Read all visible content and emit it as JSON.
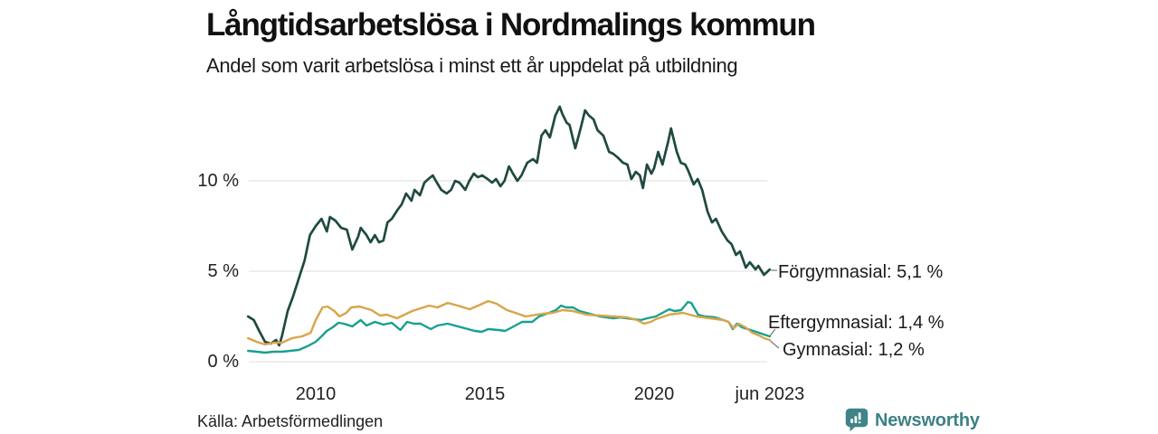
{
  "header": {
    "title": "Långtidsarbetslösa i Nordmalings kommun",
    "subtitle": "Andel som varit arbetslösa i minst ett år uppdelat på utbildning"
  },
  "footer": {
    "source": "Källa: Arbetsförmedlingen",
    "brand": "Newsworthy"
  },
  "colors": {
    "forgymnasial": "#1f4a41",
    "eftergymnasial": "#18a08e",
    "gymnasial": "#d8a549",
    "gridline": "#e4e4e4",
    "connector": "#777777",
    "brand_teal": "#3e8185",
    "text": "#1a1a1a"
  },
  "chart_data": {
    "type": "line",
    "title": "Långtidsarbetslösa i Nordmalings kommun",
    "subtitle": "Andel som varit arbetslösa i minst ett år uppdelat på utbildning",
    "xlabel": "",
    "ylabel": "",
    "xlim": [
      2008.0,
      2023.42
    ],
    "ylim": [
      0,
      14.5
    ],
    "grid": "horizontal",
    "legend_position": "end-of-line-labels",
    "yticks": [
      {
        "value": 0,
        "label": "0 %"
      },
      {
        "value": 5,
        "label": "5 %"
      },
      {
        "value": 10,
        "label": "10 %"
      }
    ],
    "xticks": [
      {
        "value": 2010,
        "label": "2010"
      },
      {
        "value": 2015,
        "label": "2015"
      },
      {
        "value": 2020,
        "label": "2020"
      },
      {
        "value": 2023.42,
        "label": "jun 2023"
      }
    ],
    "series": [
      {
        "name": "Förgymnasial",
        "end_label": "Förgymnasial: 5,1 %",
        "final_value": 5.1,
        "color": "#1f4a41",
        "width": 2.7,
        "points": [
          [
            2008.0,
            2.5
          ],
          [
            2008.17,
            2.3
          ],
          [
            2008.33,
            1.7
          ],
          [
            2008.5,
            1.1
          ],
          [
            2008.67,
            1.0
          ],
          [
            2008.83,
            1.2
          ],
          [
            2008.92,
            0.9
          ],
          [
            2009.0,
            1.4
          ],
          [
            2009.17,
            2.8
          ],
          [
            2009.33,
            3.6
          ],
          [
            2009.5,
            4.6
          ],
          [
            2009.67,
            5.6
          ],
          [
            2009.83,
            7.0
          ],
          [
            2010.0,
            7.5
          ],
          [
            2010.17,
            7.9
          ],
          [
            2010.33,
            7.2
          ],
          [
            2010.42,
            8.0
          ],
          [
            2010.58,
            7.8
          ],
          [
            2010.75,
            7.4
          ],
          [
            2010.92,
            7.3
          ],
          [
            2011.08,
            6.2
          ],
          [
            2011.25,
            6.9
          ],
          [
            2011.33,
            7.4
          ],
          [
            2011.5,
            7.0
          ],
          [
            2011.62,
            6.6
          ],
          [
            2011.75,
            7.0
          ],
          [
            2011.87,
            6.6
          ],
          [
            2012.0,
            6.7
          ],
          [
            2012.12,
            7.7
          ],
          [
            2012.25,
            7.9
          ],
          [
            2012.42,
            8.4
          ],
          [
            2012.54,
            8.7
          ],
          [
            2012.67,
            9.3
          ],
          [
            2012.83,
            8.9
          ],
          [
            2012.92,
            9.5
          ],
          [
            2013.08,
            9.2
          ],
          [
            2013.21,
            9.9
          ],
          [
            2013.33,
            10.1
          ],
          [
            2013.46,
            10.3
          ],
          [
            2013.58,
            9.9
          ],
          [
            2013.71,
            9.5
          ],
          [
            2013.87,
            9.3
          ],
          [
            2014.0,
            9.5
          ],
          [
            2014.12,
            10.0
          ],
          [
            2014.25,
            9.9
          ],
          [
            2014.42,
            9.5
          ],
          [
            2014.54,
            10.0
          ],
          [
            2014.67,
            10.4
          ],
          [
            2014.79,
            10.2
          ],
          [
            2014.92,
            10.3
          ],
          [
            2015.08,
            10.1
          ],
          [
            2015.21,
            9.9
          ],
          [
            2015.33,
            10.1
          ],
          [
            2015.46,
            9.7
          ],
          [
            2015.58,
            10.0
          ],
          [
            2015.71,
            10.8
          ],
          [
            2015.83,
            10.4
          ],
          [
            2015.96,
            10.0
          ],
          [
            2016.08,
            10.3
          ],
          [
            2016.25,
            11.0
          ],
          [
            2016.42,
            11.2
          ],
          [
            2016.54,
            11.0
          ],
          [
            2016.67,
            12.5
          ],
          [
            2016.79,
            12.8
          ],
          [
            2016.92,
            12.4
          ],
          [
            2017.08,
            13.6
          ],
          [
            2017.21,
            14.1
          ],
          [
            2017.29,
            13.7
          ],
          [
            2017.42,
            13.2
          ],
          [
            2017.5,
            13.1
          ],
          [
            2017.67,
            11.8
          ],
          [
            2017.83,
            12.9
          ],
          [
            2017.96,
            13.9
          ],
          [
            2018.08,
            13.6
          ],
          [
            2018.21,
            13.4
          ],
          [
            2018.33,
            12.8
          ],
          [
            2018.5,
            12.5
          ],
          [
            2018.67,
            11.6
          ],
          [
            2018.79,
            11.5
          ],
          [
            2018.92,
            11.3
          ],
          [
            2019.08,
            11.0
          ],
          [
            2019.21,
            10.9
          ],
          [
            2019.33,
            10.1
          ],
          [
            2019.46,
            10.5
          ],
          [
            2019.58,
            10.3
          ],
          [
            2019.67,
            9.6
          ],
          [
            2019.79,
            10.9
          ],
          [
            2019.92,
            10.4
          ],
          [
            2020.0,
            10.7
          ],
          [
            2020.12,
            11.6
          ],
          [
            2020.25,
            10.9
          ],
          [
            2020.42,
            12.2
          ],
          [
            2020.5,
            12.9
          ],
          [
            2020.67,
            11.6
          ],
          [
            2020.79,
            11.0
          ],
          [
            2020.92,
            10.9
          ],
          [
            2021.0,
            10.6
          ],
          [
            2021.17,
            9.8
          ],
          [
            2021.29,
            10.1
          ],
          [
            2021.42,
            9.5
          ],
          [
            2021.58,
            8.3
          ],
          [
            2021.71,
            7.7
          ],
          [
            2021.83,
            7.9
          ],
          [
            2022.0,
            7.2
          ],
          [
            2022.17,
            6.7
          ],
          [
            2022.29,
            6.5
          ],
          [
            2022.42,
            5.9
          ],
          [
            2022.54,
            6.1
          ],
          [
            2022.71,
            5.2
          ],
          [
            2022.83,
            5.5
          ],
          [
            2023.0,
            5.1
          ],
          [
            2023.08,
            5.3
          ],
          [
            2023.25,
            4.8
          ],
          [
            2023.42,
            5.1
          ]
        ]
      },
      {
        "name": "Eftergymnasial",
        "end_label": "Eftergymnasial: 1,4 %",
        "final_value": 1.4,
        "color": "#18a08e",
        "width": 2.4,
        "points": [
          [
            2008.0,
            0.6
          ],
          [
            2008.25,
            0.55
          ],
          [
            2008.5,
            0.5
          ],
          [
            2008.75,
            0.55
          ],
          [
            2009.0,
            0.55
          ],
          [
            2009.25,
            0.6
          ],
          [
            2009.5,
            0.65
          ],
          [
            2009.75,
            0.85
          ],
          [
            2010.0,
            1.1
          ],
          [
            2010.17,
            1.4
          ],
          [
            2010.33,
            1.7
          ],
          [
            2010.5,
            1.9
          ],
          [
            2010.67,
            2.15
          ],
          [
            2010.83,
            2.1
          ],
          [
            2011.08,
            1.95
          ],
          [
            2011.33,
            2.3
          ],
          [
            2011.5,
            2.0
          ],
          [
            2011.75,
            2.2
          ],
          [
            2012.0,
            2.05
          ],
          [
            2012.25,
            2.15
          ],
          [
            2012.5,
            1.75
          ],
          [
            2012.7,
            2.2
          ],
          [
            2012.9,
            2.1
          ],
          [
            2013.1,
            2.1
          ],
          [
            2013.4,
            1.8
          ],
          [
            2013.6,
            2.0
          ],
          [
            2013.9,
            2.1
          ],
          [
            2014.1,
            2.0
          ],
          [
            2014.4,
            1.85
          ],
          [
            2014.7,
            1.7
          ],
          [
            2014.9,
            1.65
          ],
          [
            2015.1,
            1.8
          ],
          [
            2015.4,
            1.75
          ],
          [
            2015.6,
            1.7
          ],
          [
            2015.9,
            2.0
          ],
          [
            2016.1,
            2.2
          ],
          [
            2016.4,
            2.2
          ],
          [
            2016.6,
            2.5
          ],
          [
            2016.9,
            2.7
          ],
          [
            2017.1,
            2.85
          ],
          [
            2017.25,
            3.1
          ],
          [
            2017.4,
            3.0
          ],
          [
            2017.6,
            3.0
          ],
          [
            2017.8,
            2.8
          ],
          [
            2018.0,
            2.7
          ],
          [
            2018.2,
            2.6
          ],
          [
            2018.4,
            2.5
          ],
          [
            2018.6,
            2.45
          ],
          [
            2018.8,
            2.4
          ],
          [
            2019.0,
            2.45
          ],
          [
            2019.2,
            2.4
          ],
          [
            2019.4,
            2.35
          ],
          [
            2019.6,
            2.3
          ],
          [
            2019.8,
            2.4
          ],
          [
            2020.05,
            2.5
          ],
          [
            2020.25,
            2.7
          ],
          [
            2020.45,
            2.9
          ],
          [
            2020.6,
            2.8
          ],
          [
            2020.8,
            2.85
          ],
          [
            2021.0,
            3.3
          ],
          [
            2021.1,
            3.25
          ],
          [
            2021.3,
            2.6
          ],
          [
            2021.5,
            2.5
          ],
          [
            2021.8,
            2.45
          ],
          [
            2022.05,
            2.3
          ],
          [
            2022.2,
            2.2
          ],
          [
            2022.33,
            1.8
          ],
          [
            2022.45,
            2.1
          ],
          [
            2022.6,
            1.9
          ],
          [
            2022.85,
            1.75
          ],
          [
            2023.1,
            1.6
          ],
          [
            2023.25,
            1.5
          ],
          [
            2023.42,
            1.4
          ]
        ]
      },
      {
        "name": "Gymnasial",
        "end_label": "Gymnasial: 1,2 %",
        "final_value": 1.2,
        "color": "#d8a549",
        "width": 2.4,
        "points": [
          [
            2008.0,
            1.3
          ],
          [
            2008.25,
            1.1
          ],
          [
            2008.5,
            0.95
          ],
          [
            2008.75,
            1.05
          ],
          [
            2009.0,
            1.05
          ],
          [
            2009.3,
            1.3
          ],
          [
            2009.6,
            1.4
          ],
          [
            2009.85,
            1.6
          ],
          [
            2010.0,
            2.3
          ],
          [
            2010.2,
            3.0
          ],
          [
            2010.35,
            3.05
          ],
          [
            2010.55,
            2.8
          ],
          [
            2010.7,
            2.5
          ],
          [
            2010.9,
            2.7
          ],
          [
            2011.05,
            3.0
          ],
          [
            2011.3,
            3.05
          ],
          [
            2011.65,
            2.85
          ],
          [
            2011.9,
            2.55
          ],
          [
            2012.1,
            2.6
          ],
          [
            2012.4,
            2.4
          ],
          [
            2012.85,
            2.8
          ],
          [
            2013.1,
            2.95
          ],
          [
            2013.35,
            3.1
          ],
          [
            2013.6,
            3.0
          ],
          [
            2013.9,
            3.25
          ],
          [
            2014.2,
            3.1
          ],
          [
            2014.55,
            2.9
          ],
          [
            2014.8,
            3.1
          ],
          [
            2015.1,
            3.35
          ],
          [
            2015.35,
            3.2
          ],
          [
            2015.65,
            2.85
          ],
          [
            2015.9,
            2.7
          ],
          [
            2016.2,
            2.5
          ],
          [
            2016.7,
            2.65
          ],
          [
            2017.0,
            2.7
          ],
          [
            2017.3,
            2.85
          ],
          [
            2017.6,
            2.8
          ],
          [
            2018.0,
            2.6
          ],
          [
            2018.4,
            2.55
          ],
          [
            2018.8,
            2.5
          ],
          [
            2019.2,
            2.45
          ],
          [
            2019.5,
            2.3
          ],
          [
            2019.7,
            2.1
          ],
          [
            2019.9,
            2.2
          ],
          [
            2020.05,
            2.35
          ],
          [
            2020.45,
            2.6
          ],
          [
            2020.85,
            2.7
          ],
          [
            2021.25,
            2.5
          ],
          [
            2021.65,
            2.4
          ],
          [
            2022.05,
            2.3
          ],
          [
            2022.2,
            2.2
          ],
          [
            2022.35,
            1.85
          ],
          [
            2022.5,
            2.1
          ],
          [
            2022.7,
            1.9
          ],
          [
            2022.9,
            1.6
          ],
          [
            2023.1,
            1.45
          ],
          [
            2023.25,
            1.3
          ],
          [
            2023.42,
            1.2
          ]
        ]
      }
    ]
  }
}
